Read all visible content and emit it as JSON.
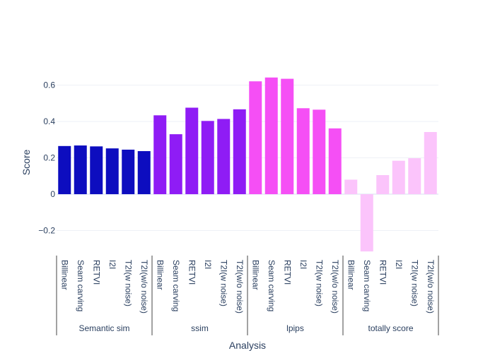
{
  "chart_data": {
    "type": "bar",
    "xlabel": "Analysis",
    "ylabel": "Score",
    "ylim": [
      -0.33,
      0.68
    ],
    "yticks": [
      -0.2,
      0,
      0.2,
      0.4,
      0.6
    ],
    "ytick_labels": [
      "−0.2",
      "0",
      "0.2",
      "0.4",
      "0.6"
    ],
    "grid": true,
    "legend": "none",
    "groups": [
      {
        "name": "Semantic sim",
        "color": "#0d0dbf",
        "categories": [
          "Billinear",
          "Seam carving",
          "RETVI",
          "I2I",
          "T2I(w noise)",
          "T2I(w/o noise)"
        ],
        "values": [
          0.265,
          0.268,
          0.263,
          0.252,
          0.245,
          0.237
        ]
      },
      {
        "name": "ssim",
        "color": "#8f1cf5",
        "categories": [
          "Billinear",
          "Seam carving",
          "RETVI",
          "I2I",
          "T2I(w noise)",
          "T2I(w/o noise)"
        ],
        "values": [
          0.434,
          0.33,
          0.476,
          0.403,
          0.414,
          0.467
        ]
      },
      {
        "name": "lpips",
        "color": "#f54ff5",
        "categories": [
          "Billinear",
          "Seam carving",
          "RETVI",
          "I2I",
          "T2I(w noise)",
          "T2I(w/o noise)"
        ],
        "values": [
          0.621,
          0.642,
          0.635,
          0.473,
          0.465,
          0.362
        ]
      },
      {
        "name": "totally score",
        "color": "#fbc4fb",
        "categories": [
          "Billinear",
          "Seam carving",
          "RETVI",
          "I2I",
          "T2I(w noise)",
          "T2I(w/o noise)"
        ],
        "values": [
          0.08,
          -0.315,
          0.105,
          0.184,
          0.198,
          0.342
        ]
      }
    ]
  }
}
